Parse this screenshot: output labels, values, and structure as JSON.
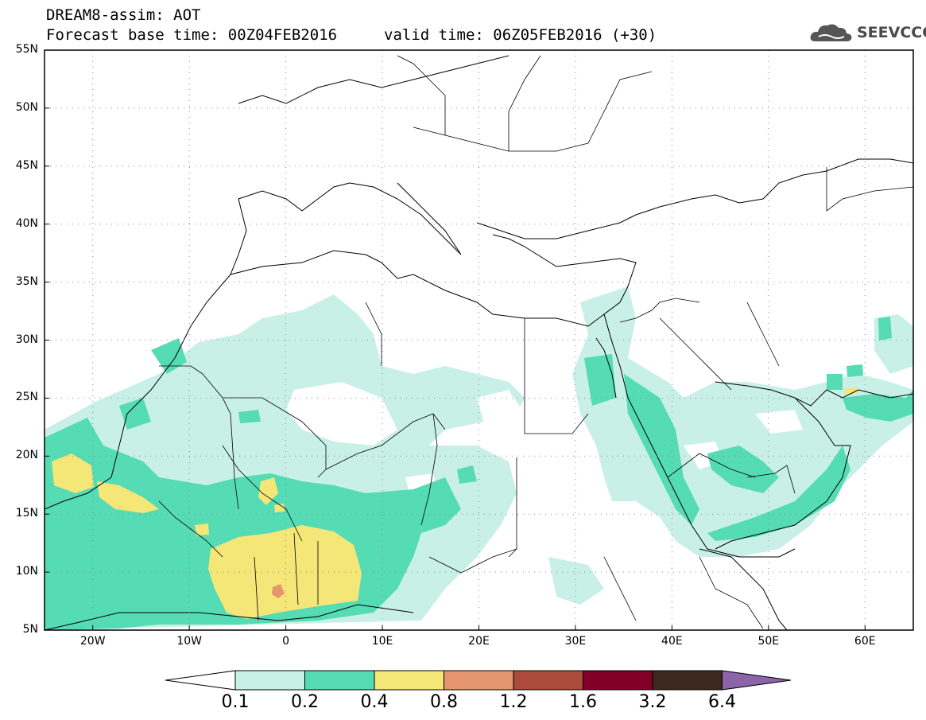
{
  "title": {
    "line1": "DREAM8-assim: AOT",
    "line2": "Forecast base time: 00Z04FEB2016",
    "valid": "valid time: 06Z05FEB2016 (+30)"
  },
  "logo": {
    "text": "SEEVCCC",
    "icon": "cloud-icon"
  },
  "map": {
    "lat_labels": [
      "55N",
      "50N",
      "45N",
      "40N",
      "35N",
      "30N",
      "25N",
      "20N",
      "15N",
      "10N",
      "5N"
    ],
    "lon_labels": [
      "20W",
      "10W",
      "0",
      "10E",
      "20E",
      "30E",
      "40E",
      "50E",
      "60E"
    ],
    "lat_range": [
      5,
      55
    ],
    "lon_range": [
      -25,
      65
    ],
    "grid": true
  },
  "colorbar": {
    "labels": [
      "0.1",
      "0.2",
      "0.4",
      "0.8",
      "1.2",
      "1.6",
      "3.2",
      "6.4"
    ],
    "colors": [
      "#ffffff",
      "#c8f0e6",
      "#55dcb4",
      "#f5e678",
      "#e6966e",
      "#aa4b3c",
      "#820028",
      "#3c281e",
      "#8c64aa"
    ]
  }
}
